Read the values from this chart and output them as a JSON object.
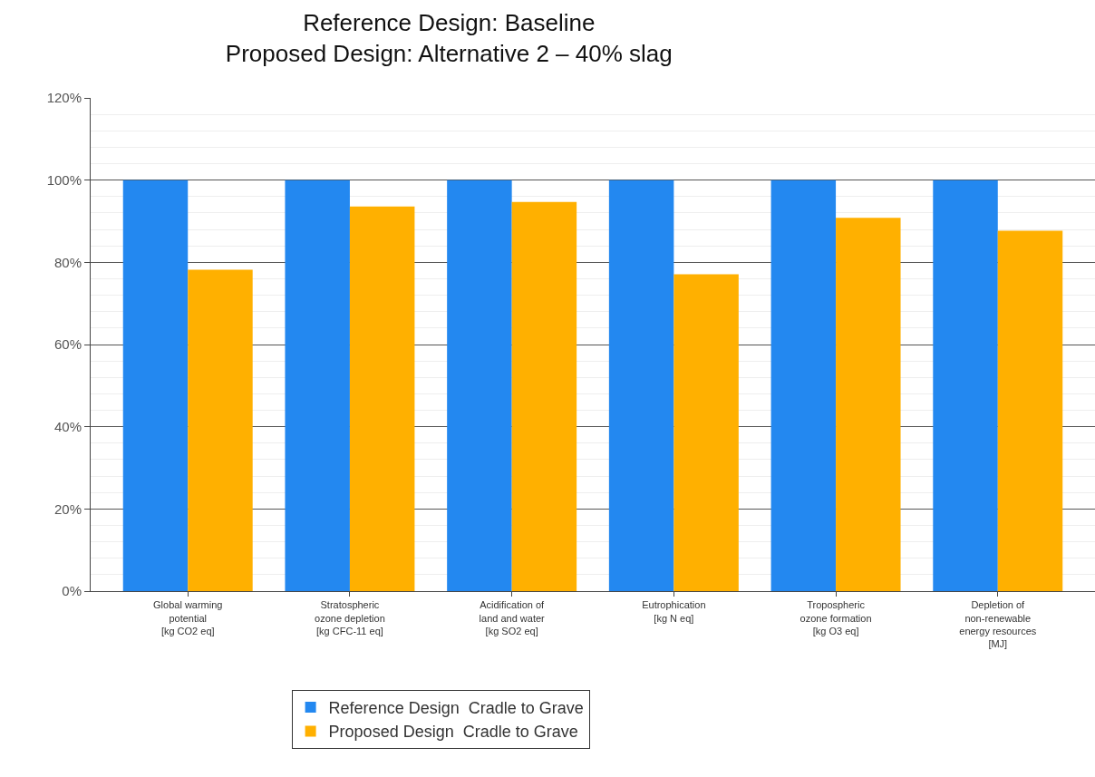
{
  "chart_data": {
    "type": "bar",
    "title": "Reference Design: Baseline\nProposed Design: Alternative 2 – 40% slag",
    "categories": [
      "Global warming\npotential\n[kg CO2 eq]",
      "Stratospheric\nozone depletion\n[kg CFC-11 eq]",
      "Acidification of\nland and water\n[kg SO2 eq]",
      "Eutrophication\n[kg N eq]",
      "Tropospheric\nozone formation\n[kg O3 eq]",
      "Depletion of\nnon-renewable\nenergy resources\n[MJ]"
    ],
    "series": [
      {
        "name": "Reference Design  Cradle to Grave",
        "color": "#2388f0",
        "values": [
          100,
          100,
          100,
          100,
          100,
          100
        ]
      },
      {
        "name": "Proposed Design  Cradle to Grave",
        "color": "#ffb000",
        "values": [
          78.2,
          93.6,
          94.7,
          77.1,
          90.8,
          87.7
        ]
      }
    ],
    "ylim": [
      0,
      120
    ],
    "yticks": [
      {
        "value": 0,
        "label": "0%"
      },
      {
        "value": 20,
        "label": "20%"
      },
      {
        "value": 40,
        "label": "40%"
      },
      {
        "value": 60,
        "label": "60%"
      },
      {
        "value": 80,
        "label": "80%"
      },
      {
        "value": 100,
        "label": "100%"
      },
      {
        "value": 120,
        "label": "120%"
      }
    ],
    "grid": "y",
    "legend": "bottom"
  }
}
